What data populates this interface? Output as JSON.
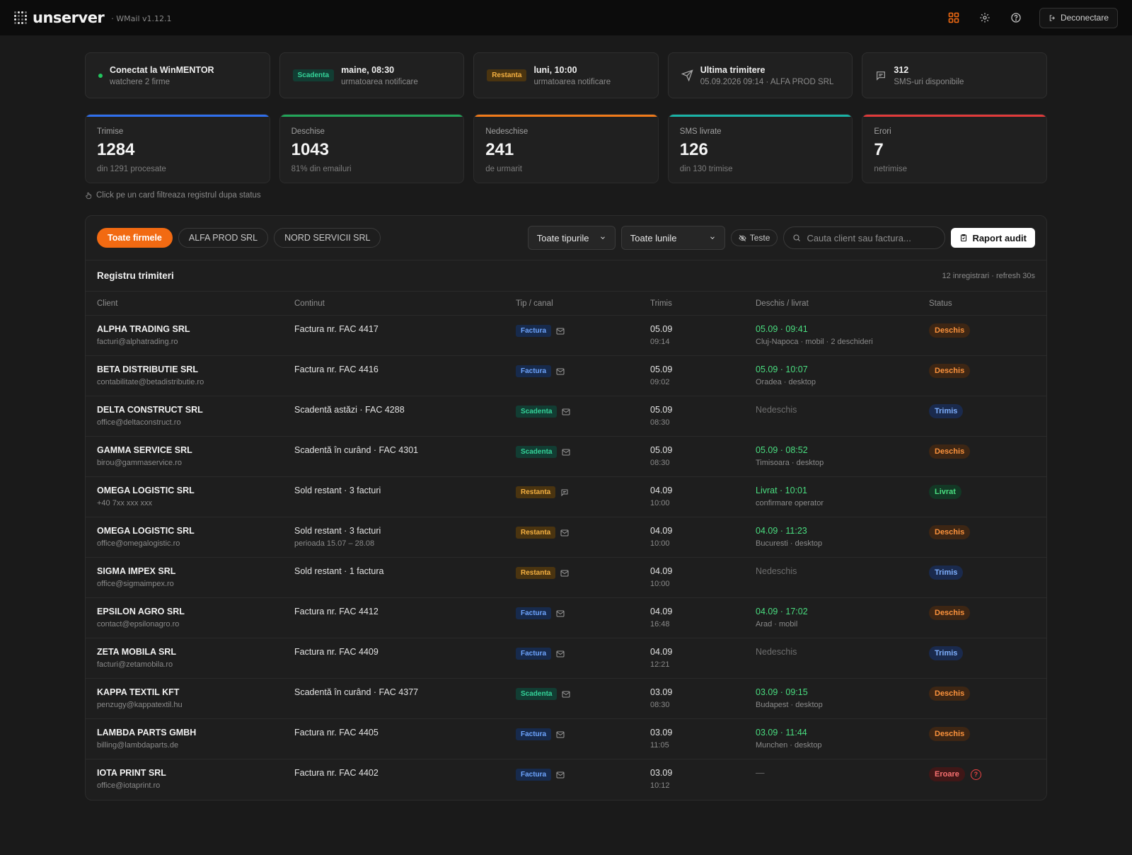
{
  "header": {
    "logo_text": "unserver",
    "app_version": "· WMail v1.12.1",
    "logout_label": "Deconectare"
  },
  "info_cards": {
    "connection": {
      "title": "Conectat la WinMENTOR",
      "subtitle": "watchere 2 firme"
    },
    "scadenta": {
      "tag": "Scadenta",
      "title": "maine, 08:30",
      "subtitle": "urmatoarea notificare"
    },
    "restanta": {
      "tag": "Restanta",
      "title": "luni, 10:00",
      "subtitle": "urmatoarea notificare"
    },
    "last_send": {
      "title": "Ultima trimitere",
      "subtitle": "05.09.2026 09:14 · ALFA PROD SRL"
    },
    "sms": {
      "title": "312",
      "subtitle": "SMS-uri disponibile"
    }
  },
  "stats": [
    {
      "label": "Trimise",
      "value": "1284",
      "sub": "din 1291 procesate",
      "accent": "#2f6fed"
    },
    {
      "label": "Deschise",
      "value": "1043",
      "sub": "81% din emailuri",
      "accent": "#22a559"
    },
    {
      "label": "Nedeschise",
      "value": "241",
      "sub": "de urmarit",
      "accent": "#f07a1a"
    },
    {
      "label": "SMS livrate",
      "value": "126",
      "sub": "din 130 trimise",
      "accent": "#19b3a6"
    },
    {
      "label": "Erori",
      "value": "7",
      "sub": "netrimise",
      "accent": "#e03a3a"
    }
  ],
  "hint": "Click pe un card filtreaza registrul dupa status",
  "toolbar": {
    "companies": [
      "Toate firmele",
      "ALFA PROD SRL",
      "NORD SERVICII SRL"
    ],
    "type_select": "Toate tipurile",
    "month_select": "Toate lunile",
    "teste_label": "Teste",
    "search_placeholder": "Cauta client sau factura...",
    "report_label": "Raport audit"
  },
  "register": {
    "title": "Registru trimiteri",
    "meta": "12 inregistrari · refresh 30s",
    "columns": [
      "Client",
      "Continut",
      "Tip / canal",
      "Trimis",
      "Deschis / livrat",
      "Status"
    ],
    "rows": [
      {
        "client": "ALPHA TRADING SRL",
        "contact": "facturi@alphatrading.ro",
        "content": "Factura nr. FAC 4417",
        "content_sub": "",
        "type": "Factura",
        "channel": "mail-icon",
        "sent_date": "05.09",
        "sent_time": "09:14",
        "opened": "05.09 · 09:41",
        "opened_sub": "Cluj-Napoca · mobil · 2 deschideri",
        "opened_state": "green",
        "status": "Deschis",
        "status_kind": "deschis"
      },
      {
        "client": "BETA DISTRIBUTIE SRL",
        "contact": "contabilitate@betadistributie.ro",
        "content": "Factura nr. FAC 4416",
        "content_sub": "",
        "type": "Factura",
        "channel": "mail-icon",
        "sent_date": "05.09",
        "sent_time": "09:02",
        "opened": "05.09 · 10:07",
        "opened_sub": "Oradea · desktop",
        "opened_state": "green",
        "status": "Deschis",
        "status_kind": "deschis"
      },
      {
        "client": "DELTA CONSTRUCT SRL",
        "contact": "office@deltaconstruct.ro",
        "content": "Scadentă astăzi · FAC 4288",
        "content_sub": "",
        "type": "Scadenta",
        "channel": "mail-icon",
        "sent_date": "05.09",
        "sent_time": "08:30",
        "opened": "Nedeschis",
        "opened_sub": "",
        "opened_state": "grey",
        "status": "Trimis",
        "status_kind": "trimis"
      },
      {
        "client": "GAMMA SERVICE SRL",
        "contact": "birou@gammaservice.ro",
        "content": "Scadentă în curând · FAC 4301",
        "content_sub": "",
        "type": "Scadenta",
        "channel": "mail-icon",
        "sent_date": "05.09",
        "sent_time": "08:30",
        "opened": "05.09 · 08:52",
        "opened_sub": "Timisoara · desktop",
        "opened_state": "green",
        "status": "Deschis",
        "status_kind": "deschis"
      },
      {
        "client": "OMEGA LOGISTIC SRL",
        "contact": "+40 7xx xxx xxx",
        "content": "Sold restant · 3 facturi",
        "content_sub": "",
        "type": "Restanta",
        "channel": "sms-icon",
        "sent_date": "04.09",
        "sent_time": "10:00",
        "opened": "Livrat · 10:01",
        "opened_sub": "confirmare operator",
        "opened_state": "green",
        "status": "Livrat",
        "status_kind": "livrat"
      },
      {
        "client": "OMEGA LOGISTIC SRL",
        "contact": "office@omegalogistic.ro",
        "content": "Sold restant · 3 facturi",
        "content_sub": "perioada 15.07 – 28.08",
        "type": "Restanta",
        "channel": "mail-icon",
        "sent_date": "04.09",
        "sent_time": "10:00",
        "opened": "04.09 · 11:23",
        "opened_sub": "Bucuresti · desktop",
        "opened_state": "green",
        "status": "Deschis",
        "status_kind": "deschis"
      },
      {
        "client": "SIGMA IMPEX SRL",
        "contact": "office@sigmaimpex.ro",
        "content": "Sold restant · 1 factura",
        "content_sub": "",
        "type": "Restanta",
        "channel": "mail-icon",
        "sent_date": "04.09",
        "sent_time": "10:00",
        "opened": "Nedeschis",
        "opened_sub": "",
        "opened_state": "grey",
        "status": "Trimis",
        "status_kind": "trimis"
      },
      {
        "client": "EPSILON AGRO SRL",
        "contact": "contact@epsilonagro.ro",
        "content": "Factura nr. FAC 4412",
        "content_sub": "",
        "type": "Factura",
        "channel": "mail-icon",
        "sent_date": "04.09",
        "sent_time": "16:48",
        "opened": "04.09 · 17:02",
        "opened_sub": "Arad · mobil",
        "opened_state": "green",
        "status": "Deschis",
        "status_kind": "deschis"
      },
      {
        "client": "ZETA MOBILA SRL",
        "contact": "facturi@zetamobila.ro",
        "content": "Factura nr. FAC 4409",
        "content_sub": "",
        "type": "Factura",
        "channel": "mail-icon",
        "sent_date": "04.09",
        "sent_time": "12:21",
        "opened": "Nedeschis",
        "opened_sub": "",
        "opened_state": "grey",
        "status": "Trimis",
        "status_kind": "trimis"
      },
      {
        "client": "KAPPA TEXTIL KFT",
        "contact": "penzugy@kappatextil.hu",
        "content": "Scadentă în curând · FAC 4377",
        "content_sub": "",
        "type": "Scadenta",
        "channel": "mail-icon",
        "sent_date": "03.09",
        "sent_time": "08:30",
        "opened": "03.09 · 09:15",
        "opened_sub": "Budapest · desktop",
        "opened_state": "green",
        "status": "Deschis",
        "status_kind": "deschis"
      },
      {
        "client": "LAMBDA PARTS GMBH",
        "contact": "billing@lambdaparts.de",
        "content": "Factura nr. FAC 4405",
        "content_sub": "",
        "type": "Factura",
        "channel": "mail-icon",
        "sent_date": "03.09",
        "sent_time": "11:05",
        "opened": "03.09 · 11:44",
        "opened_sub": "Munchen · desktop",
        "opened_state": "green",
        "status": "Deschis",
        "status_kind": "deschis"
      },
      {
        "client": "IOTA PRINT SRL",
        "contact": "office@iotaprint.ro",
        "content": "Factura nr. FAC 4402",
        "content_sub": "",
        "type": "Factura",
        "channel": "mail-icon",
        "sent_date": "03.09",
        "sent_time": "10:12",
        "opened": "—",
        "opened_sub": "",
        "opened_state": "grey",
        "status": "Eroare",
        "status_kind": "eroare",
        "help_mark": "?"
      }
    ]
  }
}
